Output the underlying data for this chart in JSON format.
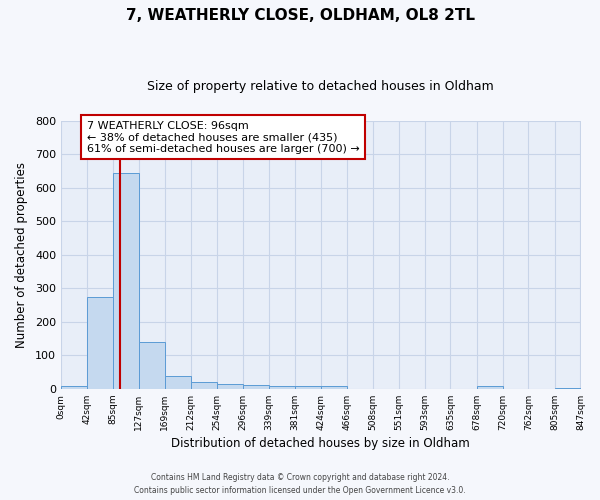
{
  "title_line1": "7, WEATHERLY CLOSE, OLDHAM, OL8 2TL",
  "title_line2": "Size of property relative to detached houses in Oldham",
  "xlabel": "Distribution of detached houses by size in Oldham",
  "ylabel": "Number of detached properties",
  "annotation_text": "7 WEATHERLY CLOSE: 96sqm\n← 38% of detached houses are smaller (435)\n61% of semi-detached houses are larger (700) →",
  "bin_edges": [
    0,
    42,
    85,
    127,
    169,
    212,
    254,
    296,
    339,
    381,
    424,
    466,
    508,
    551,
    593,
    635,
    678,
    720,
    762,
    805,
    847
  ],
  "bin_counts": [
    8,
    275,
    645,
    140,
    37,
    20,
    13,
    12,
    8,
    8,
    8,
    0,
    0,
    0,
    0,
    0,
    8,
    0,
    0,
    3
  ],
  "bar_color": "#c5d9ef",
  "bar_edge_color": "#5b9bd5",
  "vline_color": "#c00000",
  "vline_x": 96,
  "plot_bg_color": "#e8eef8",
  "fig_bg_color": "#f5f7fc",
  "grid_color": "#c8d4e8",
  "annotation_box_edge": "#c00000",
  "footer_text": "Contains HM Land Registry data © Crown copyright and database right 2024.\nContains public sector information licensed under the Open Government Licence v3.0.",
  "ylim": [
    0,
    800
  ],
  "yticks": [
    0,
    100,
    200,
    300,
    400,
    500,
    600,
    700,
    800
  ]
}
